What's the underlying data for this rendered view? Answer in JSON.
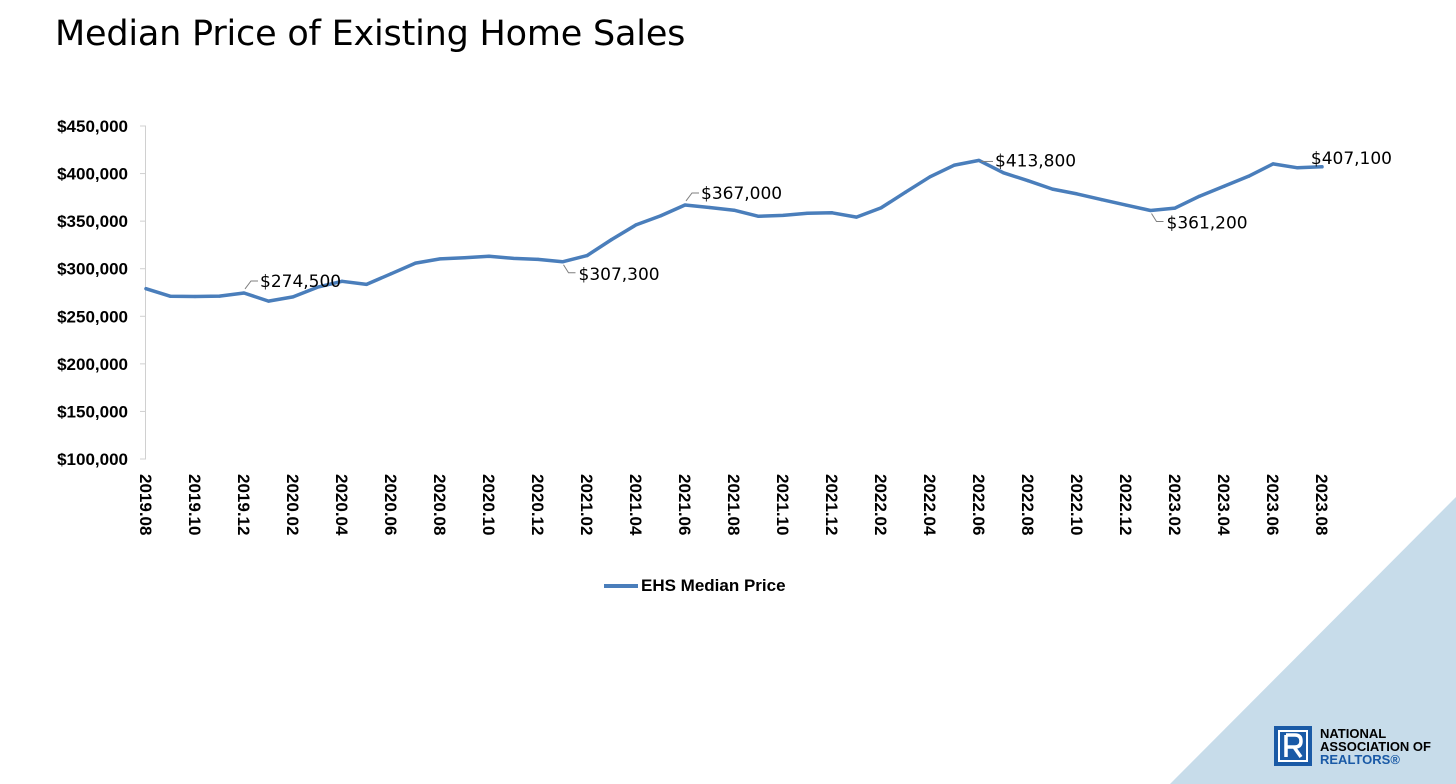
{
  "title": "Median Price of Existing Home Sales",
  "colors": {
    "line": "#4a7ebb",
    "corner": "#c7dcea",
    "logo": "#1a5aa6"
  },
  "legend": {
    "label": "EHS Median Price",
    "position": "bottom"
  },
  "logo": {
    "icon": "realtor-r-icon",
    "line1": "NATIONAL",
    "line2": "ASSOCIATION OF",
    "line3": "REALTORS",
    "reg": "®"
  },
  "chart_data": {
    "type": "line",
    "title": "Median Price of Existing Home Sales",
    "xlabel": "",
    "ylabel": "",
    "ylim": [
      100000,
      450000
    ],
    "yticks": [
      100000,
      150000,
      200000,
      250000,
      300000,
      350000,
      400000,
      450000
    ],
    "ytick_labels": [
      "$100,000",
      "$150,000",
      "$200,000",
      "$250,000",
      "$300,000",
      "$350,000",
      "$400,000",
      "$450,000"
    ],
    "xtick_labels": [
      "2019.08",
      "2019.10",
      "2019.12",
      "2020.02",
      "2020.04",
      "2020.06",
      "2020.08",
      "2020.10",
      "2020.12",
      "2021.02",
      "2021.04",
      "2021.06",
      "2021.08",
      "2021.10",
      "2021.12",
      "2022.02",
      "2022.04",
      "2022.06",
      "2022.08",
      "2022.10",
      "2022.12",
      "2023.02",
      "2023.04",
      "2023.06",
      "2023.08"
    ],
    "grid": false,
    "legend_position": "bottom",
    "series": [
      {
        "name": "EHS Median Price",
        "x": [
          "2019.08",
          "2019.09",
          "2019.10",
          "2019.11",
          "2019.12",
          "2020.01",
          "2020.02",
          "2020.03",
          "2020.04",
          "2020.05",
          "2020.06",
          "2020.07",
          "2020.08",
          "2020.09",
          "2020.10",
          "2020.11",
          "2020.12",
          "2021.01",
          "2021.02",
          "2021.03",
          "2021.04",
          "2021.05",
          "2021.06",
          "2021.07",
          "2021.08",
          "2021.09",
          "2021.10",
          "2021.11",
          "2021.12",
          "2022.01",
          "2022.02",
          "2022.03",
          "2022.04",
          "2022.05",
          "2022.06",
          "2022.07",
          "2022.08",
          "2022.09",
          "2022.10",
          "2022.11",
          "2022.12",
          "2023.01",
          "2023.02",
          "2023.03",
          "2023.04",
          "2023.05",
          "2023.06",
          "2023.07",
          "2023.08"
        ],
        "values": [
          279000,
          271000,
          270800,
          271200,
          274500,
          266000,
          270400,
          280600,
          286800,
          283500,
          294700,
          305900,
          310300,
          311500,
          313200,
          310800,
          309800,
          307300,
          313800,
          330600,
          346100,
          355500,
          367000,
          364300,
          361500,
          355100,
          356000,
          358400,
          358800,
          354300,
          363900,
          380400,
          396600,
          408900,
          413800,
          400800,
          392500,
          383700,
          378600,
          372600,
          366900,
          361200,
          363700,
          376200,
          386600,
          397100,
          410200,
          406100,
          407100
        ]
      }
    ],
    "annotations": [
      {
        "x": "2019.12",
        "value": 274500,
        "label": "$274,500",
        "side": "above-right"
      },
      {
        "x": "2021.01",
        "value": 307300,
        "label": "$307,300",
        "side": "below-right"
      },
      {
        "x": "2021.06",
        "value": 367000,
        "label": "$367,000",
        "side": "above-right"
      },
      {
        "x": "2022.06",
        "value": 413800,
        "label": "$413,800",
        "side": "right"
      },
      {
        "x": "2023.01",
        "value": 361200,
        "label": "$361,200",
        "side": "below-right"
      },
      {
        "x": "2023.08",
        "value": 407100,
        "label": "$407,100",
        "side": "above-left"
      }
    ]
  }
}
